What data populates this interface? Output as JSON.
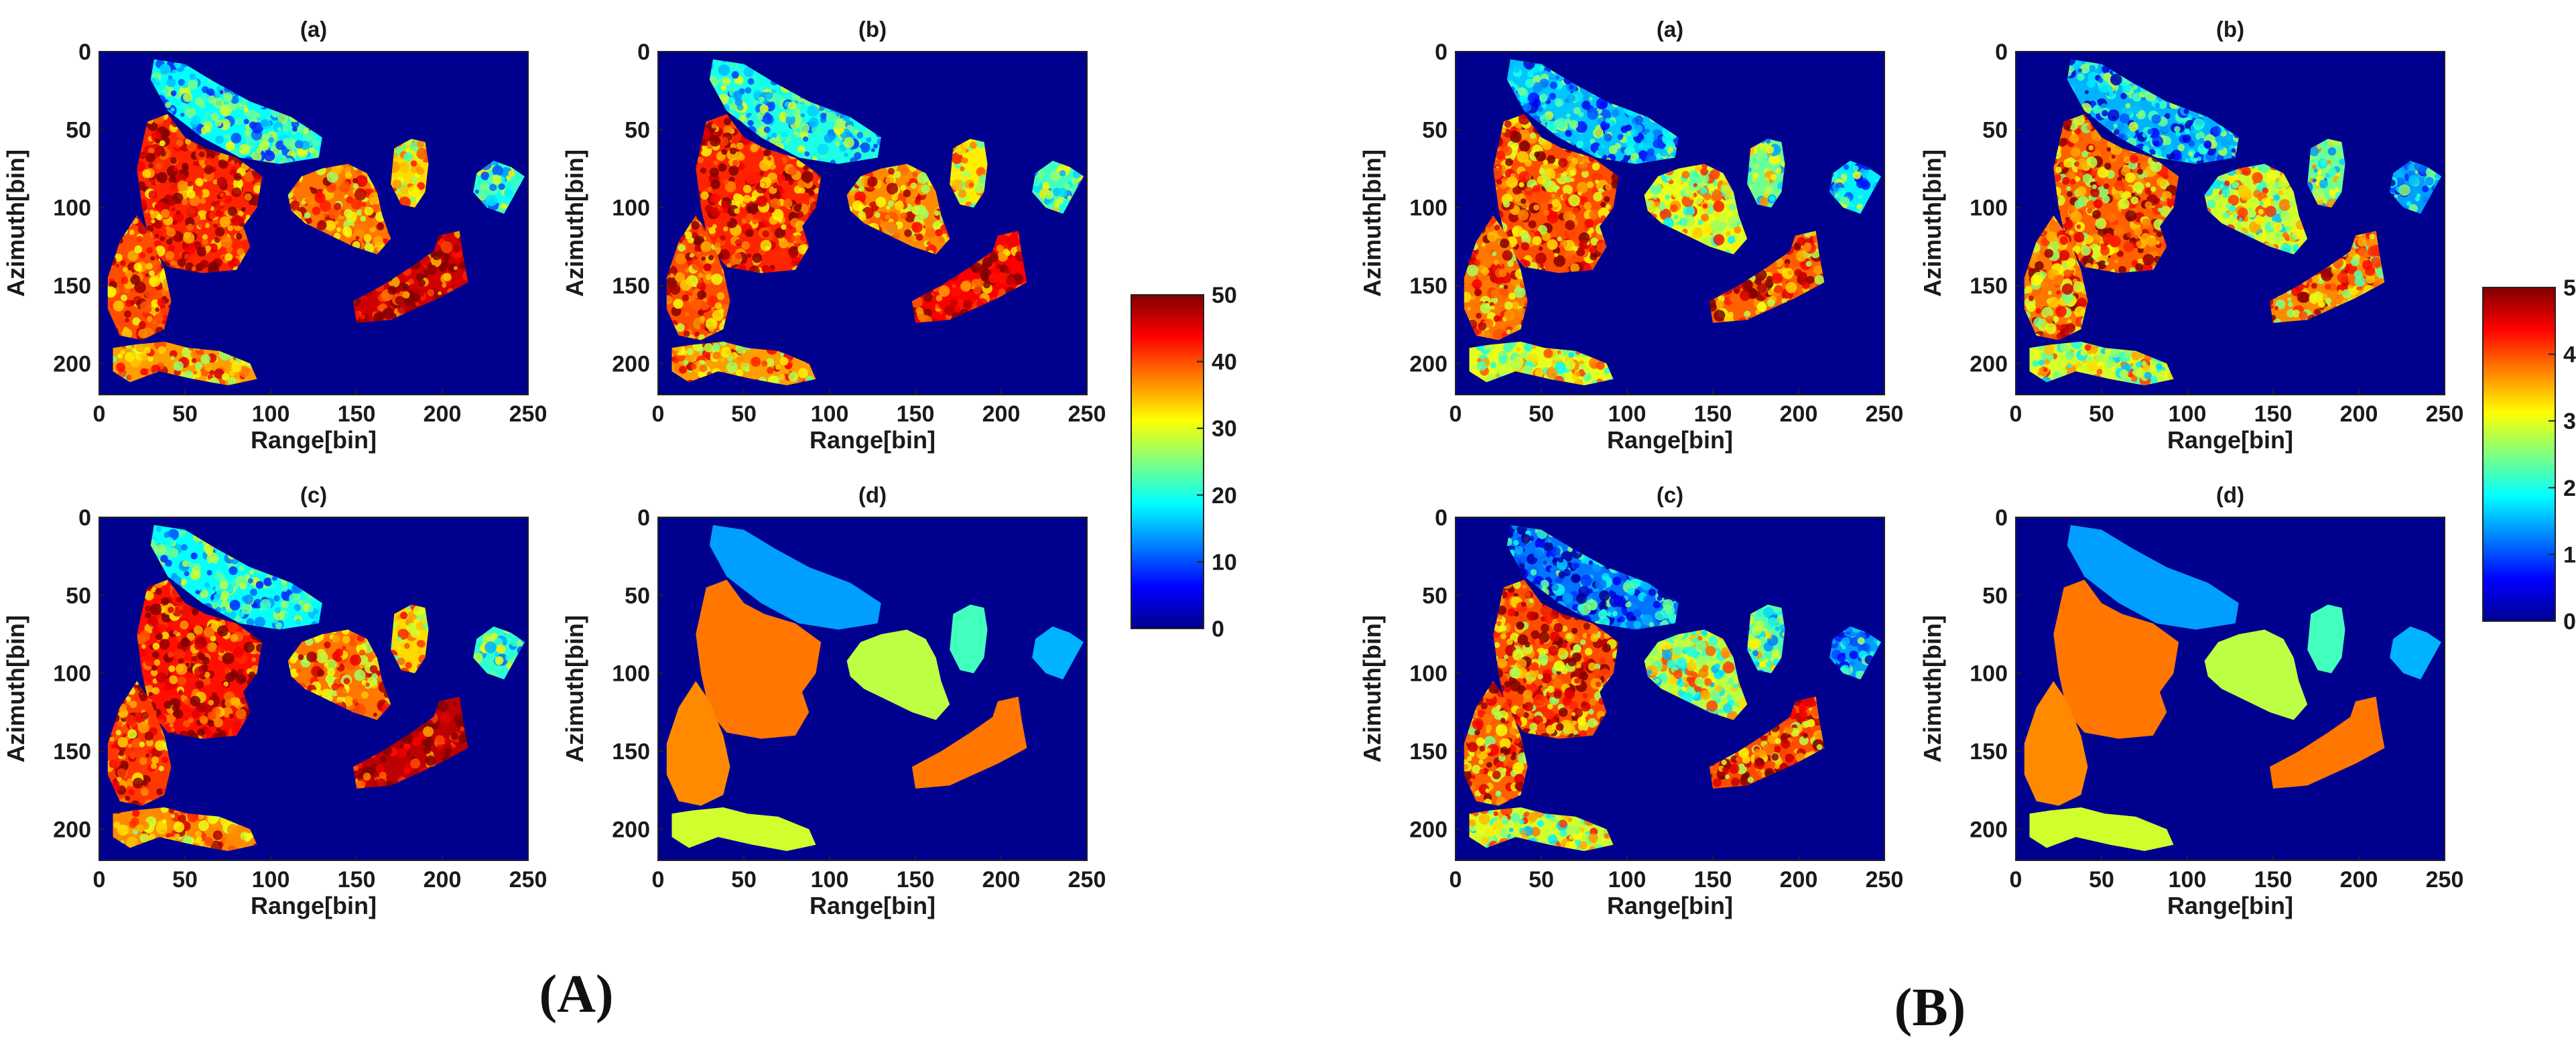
{
  "groups": [
    {
      "label": "(A)"
    },
    {
      "label": "(B)"
    }
  ],
  "colorbar": {
    "colormap": "jet",
    "ticks": [
      "0",
      "10",
      "20",
      "30",
      "40",
      "50"
    ],
    "range": [
      0,
      50
    ]
  },
  "colors": {
    "background": "#00008f",
    "jet_stops": [
      "#00008f",
      "#0000ff",
      "#0080ff",
      "#00ffff",
      "#80ff80",
      "#ffff00",
      "#ff8000",
      "#ff0000",
      "#800000"
    ]
  },
  "chart_data": [
    {
      "group": "(A)",
      "panel": "(a)",
      "type": "heatmap",
      "title": "(a)",
      "xlabel": "Range[bin]",
      "ylabel": "Azimuth[bin]",
      "xlim": [
        0,
        250
      ],
      "ylim": [
        0,
        220
      ],
      "xticks": [
        "0",
        "50",
        "100",
        "150",
        "200",
        "250"
      ],
      "yticks": [
        "0",
        "50",
        "100",
        "150",
        "200"
      ],
      "region_values": {
        "north": 19,
        "west_center": 42,
        "center": 38,
        "east_small": 33,
        "far_east": 21,
        "southeast": 46,
        "southwest": 40,
        "south_strip": 36
      },
      "noise": 0.9
    },
    {
      "group": "(A)",
      "panel": "(b)",
      "type": "heatmap",
      "title": "(b)",
      "xlabel": "Range[bin]",
      "ylabel": "Azimuth[bin]",
      "xlim": [
        0,
        250
      ],
      "ylim": [
        0,
        220
      ],
      "xticks": [
        "0",
        "50",
        "100",
        "150",
        "200",
        "250"
      ],
      "yticks": [
        "0",
        "50",
        "100",
        "150",
        "200"
      ],
      "region_values": {
        "north": 20,
        "west_center": 42,
        "center": 37,
        "east_small": 32,
        "far_east": 22,
        "southeast": 44,
        "southwest": 40,
        "south_strip": 36
      },
      "noise": 0.9
    },
    {
      "group": "(A)",
      "panel": "(c)",
      "type": "heatmap",
      "title": "(c)",
      "xlabel": "Range[bin]",
      "ylabel": "Azimuth[bin]",
      "xlim": [
        0,
        250
      ],
      "ylim": [
        0,
        220
      ],
      "xticks": [
        "0",
        "50",
        "100",
        "150",
        "200",
        "250"
      ],
      "yticks": [
        "0",
        "50",
        "100",
        "150",
        "200"
      ],
      "region_values": {
        "north": 19,
        "west_center": 43,
        "center": 38,
        "east_small": 33,
        "far_east": 21,
        "southeast": 47,
        "southwest": 41,
        "south_strip": 37
      },
      "noise": 0.9
    },
    {
      "group": "(A)",
      "panel": "(d)",
      "type": "heatmap",
      "title": "(d)",
      "xlabel": "Range[bin]",
      "ylabel": "Azimuth[bin]",
      "xlim": [
        0,
        250
      ],
      "ylim": [
        0,
        220
      ],
      "xticks": [
        "0",
        "50",
        "100",
        "150",
        "200",
        "250"
      ],
      "yticks": [
        "0",
        "50",
        "100",
        "150",
        "200"
      ],
      "region_values": {
        "north": 14,
        "west_center": 38,
        "center": 28,
        "east_small": 22,
        "far_east": 15,
        "southeast": 38,
        "southwest": 37,
        "south_strip": 29
      },
      "noise": 0
    },
    {
      "group": "(B)",
      "panel": "(a)",
      "type": "heatmap",
      "title": "(a)",
      "xlabel": "Range[bin]",
      "ylabel": "Azimuth[bin]",
      "xlim": [
        0,
        250
      ],
      "ylim": [
        0,
        220
      ],
      "xticks": [
        "0",
        "50",
        "100",
        "150",
        "200",
        "250"
      ],
      "yticks": [
        "0",
        "50",
        "100",
        "150",
        "200"
      ],
      "region_values": {
        "north": 16,
        "west_center": 40,
        "center": 30,
        "east_small": 24,
        "far_east": 18,
        "southeast": 39,
        "southwest": 38,
        "south_strip": 30
      },
      "noise": 1.0
    },
    {
      "group": "(B)",
      "panel": "(b)",
      "type": "heatmap",
      "title": "(b)",
      "xlabel": "Range[bin]",
      "ylabel": "Azimuth[bin]",
      "xlim": [
        0,
        250
      ],
      "ylim": [
        0,
        220
      ],
      "xticks": [
        "0",
        "50",
        "100",
        "150",
        "200",
        "250"
      ],
      "yticks": [
        "0",
        "50",
        "100",
        "150",
        "200"
      ],
      "region_values": {
        "north": 15,
        "west_center": 39,
        "center": 29,
        "east_small": 24,
        "far_east": 14,
        "southeast": 37,
        "southwest": 38,
        "south_strip": 29
      },
      "noise": 1.1
    },
    {
      "group": "(B)",
      "panel": "(c)",
      "type": "heatmap",
      "title": "(c)",
      "xlabel": "Range[bin]",
      "ylabel": "Azimuth[bin]",
      "xlim": [
        0,
        250
      ],
      "ylim": [
        0,
        220
      ],
      "xticks": [
        "0",
        "50",
        "100",
        "150",
        "200",
        "250"
      ],
      "yticks": [
        "0",
        "50",
        "100",
        "150",
        "200"
      ],
      "region_values": {
        "north": 12,
        "west_center": 40,
        "center": 28,
        "east_small": 23,
        "far_east": 14,
        "southeast": 40,
        "southwest": 39,
        "south_strip": 29
      },
      "noise": 1.1
    },
    {
      "group": "(B)",
      "panel": "(d)",
      "type": "heatmap",
      "title": "(d)",
      "xlabel": "Range[bin]",
      "ylabel": "Azimuth[bin]",
      "xlim": [
        0,
        250
      ],
      "ylim": [
        0,
        220
      ],
      "xticks": [
        "0",
        "50",
        "100",
        "150",
        "200",
        "250"
      ],
      "yticks": [
        "0",
        "50",
        "100",
        "150",
        "200"
      ],
      "region_values": {
        "north": 14,
        "west_center": 38,
        "center": 28,
        "east_small": 22,
        "far_east": 15,
        "southeast": 38,
        "southwest": 37,
        "south_strip": 29
      },
      "noise": 0
    }
  ]
}
